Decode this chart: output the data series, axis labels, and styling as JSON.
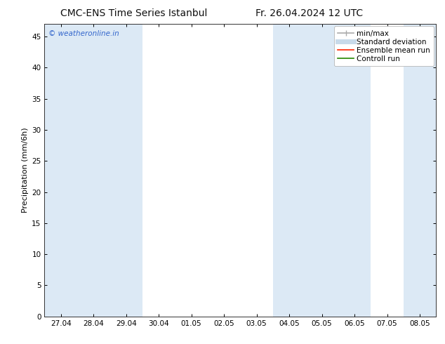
{
  "title_left": "CMC-ENS Time Series Istanbul",
  "title_right": "Fr. 26.04.2024 12 UTC",
  "ylabel": "Precipitation (mm/6h)",
  "ylim": [
    0,
    47
  ],
  "yticks": [
    0,
    5,
    10,
    15,
    20,
    25,
    30,
    35,
    40,
    45
  ],
  "xtick_labels": [
    "27.04",
    "28.04",
    "29.04",
    "30.04",
    "01.05",
    "02.05",
    "03.05",
    "04.05",
    "05.05",
    "06.05",
    "07.05",
    "08.05"
  ],
  "background_color": "#ffffff",
  "shade_color": "#dce9f5",
  "shade_alpha": 1.0,
  "shade_columns": [
    0,
    1,
    2,
    7,
    8,
    9,
    11
  ],
  "watermark": "© weatheronline.in",
  "watermark_color": "#3366cc",
  "legend_items": [
    {
      "label": "min/max",
      "color": "#aaaaaa",
      "lw": 1.2
    },
    {
      "label": "Standard deviation",
      "color": "#c8daea",
      "lw": 5
    },
    {
      "label": "Ensemble mean run",
      "color": "#ff2200",
      "lw": 1.2
    },
    {
      "label": "Controll run",
      "color": "#228800",
      "lw": 1.2
    }
  ],
  "title_fontsize": 10,
  "tick_fontsize": 7.5,
  "ylabel_fontsize": 8,
  "legend_fontsize": 7.5,
  "watermark_fontsize": 7.5
}
